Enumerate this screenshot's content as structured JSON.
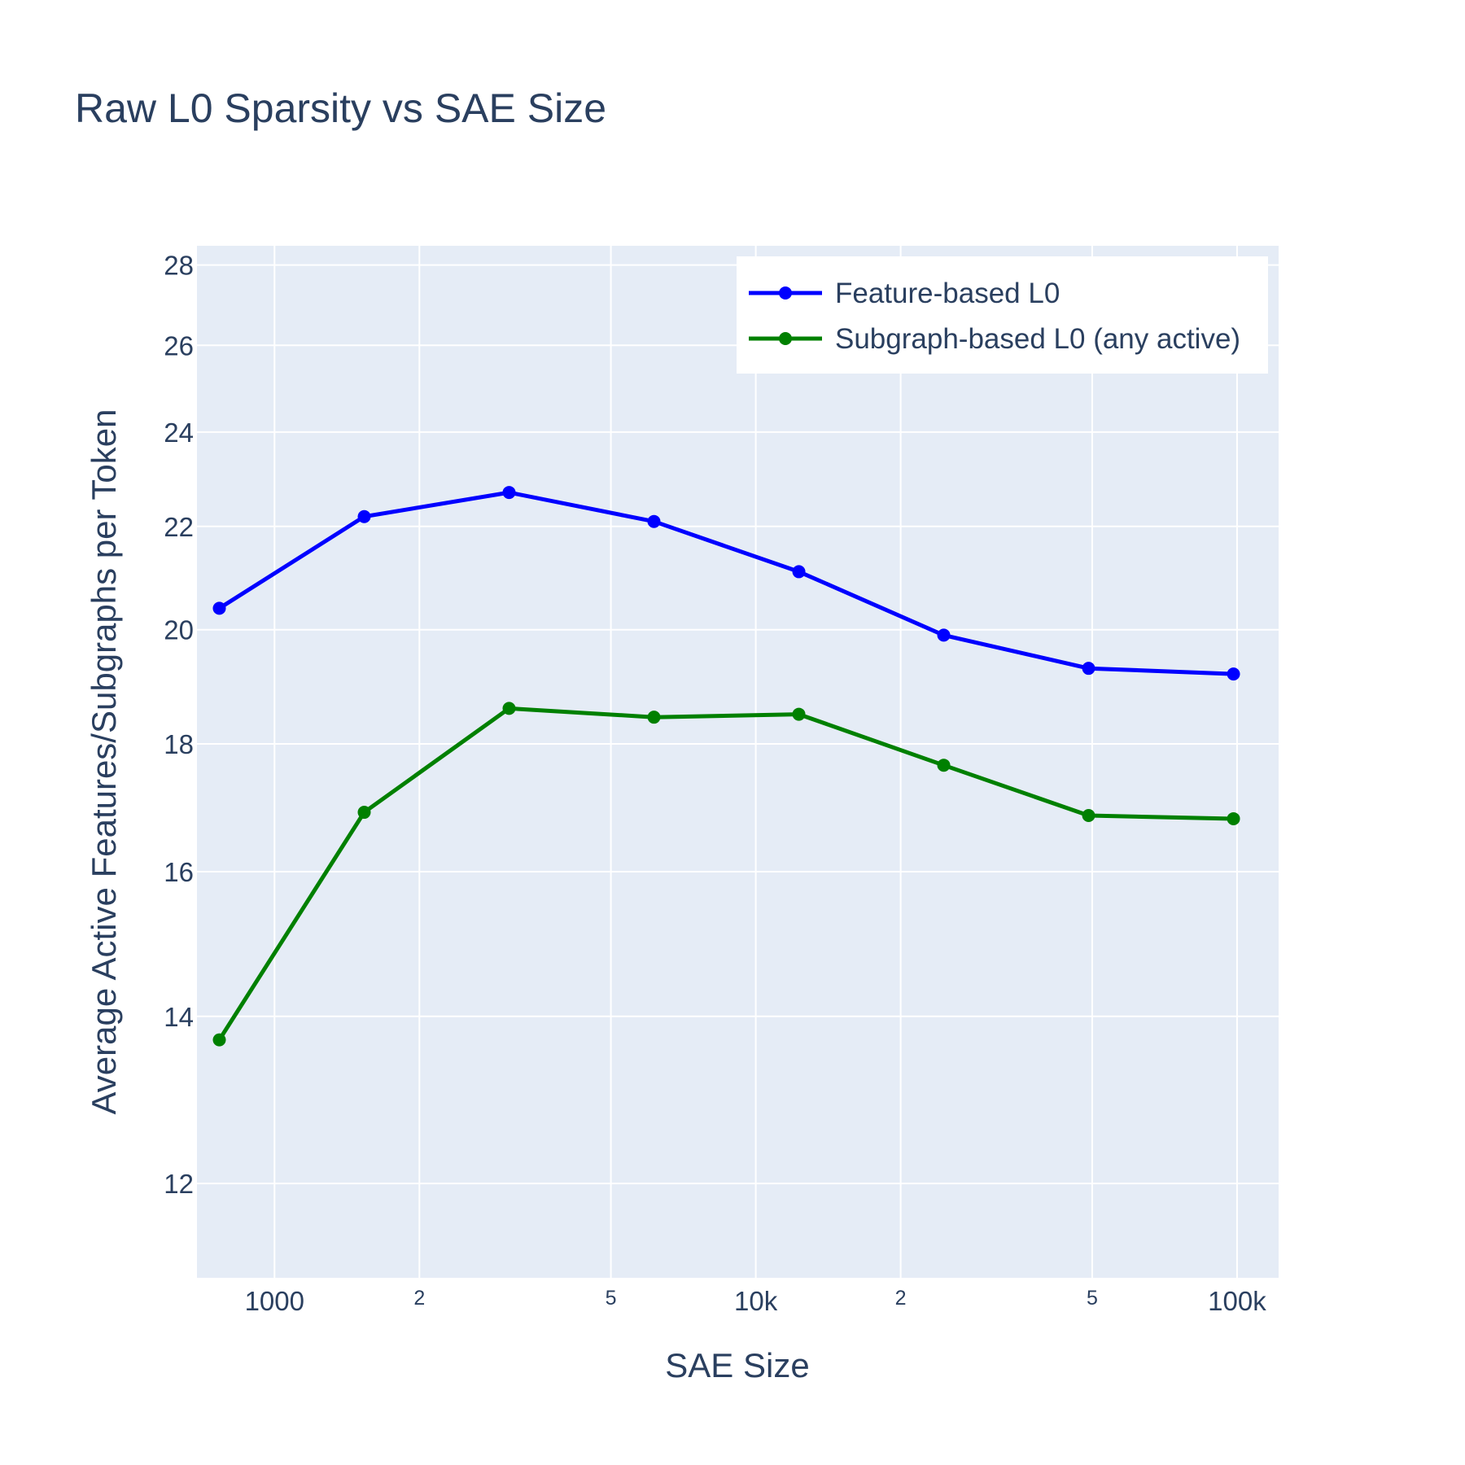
{
  "chart_data": {
    "type": "line",
    "title": "Raw L0 Sparsity vs SAE Size",
    "xlabel": "SAE Size",
    "ylabel": "Average Active Features/Subgraphs per Token",
    "x_scale": "log",
    "y_scale": "log",
    "xlim": [
      690,
      122000
    ],
    "ylim": [
      11,
      28.5
    ],
    "x_ticks": [
      {
        "value": 1000,
        "label": "1000",
        "minor": false
      },
      {
        "value": 2000,
        "label": "2",
        "minor": true
      },
      {
        "value": 5000,
        "label": "5",
        "minor": true
      },
      {
        "value": 10000,
        "label": "10k",
        "minor": false
      },
      {
        "value": 20000,
        "label": "2",
        "minor": true
      },
      {
        "value": 50000,
        "label": "5",
        "minor": true
      },
      {
        "value": 100000,
        "label": "100k",
        "minor": false
      }
    ],
    "y_ticks": [
      {
        "value": 12,
        "label": "12"
      },
      {
        "value": 14,
        "label": "14"
      },
      {
        "value": 16,
        "label": "16"
      },
      {
        "value": 18,
        "label": "18"
      },
      {
        "value": 20,
        "label": "20"
      },
      {
        "value": 22,
        "label": "22"
      },
      {
        "value": 24,
        "label": "24"
      },
      {
        "value": 26,
        "label": "26"
      },
      {
        "value": 28,
        "label": "28"
      }
    ],
    "x": [
      768,
      1536,
      3072,
      6144,
      12288,
      24576,
      49152,
      98304
    ],
    "series": [
      {
        "name": "Feature-based L0",
        "color": "#0000ff",
        "values": [
          20.4,
          22.2,
          22.7,
          22.1,
          21.1,
          19.9,
          19.3,
          19.2
        ]
      },
      {
        "name": "Subgraph-based L0 (any active)",
        "color": "#008000",
        "values": [
          13.7,
          16.9,
          18.6,
          18.45,
          18.5,
          17.65,
          16.85,
          16.8
        ]
      }
    ],
    "grid": true,
    "legend_position": "top-right",
    "colors": {
      "plot_bg": "#e5ecf6",
      "grid": "#ffffff",
      "text": "#2a3f5f"
    }
  }
}
